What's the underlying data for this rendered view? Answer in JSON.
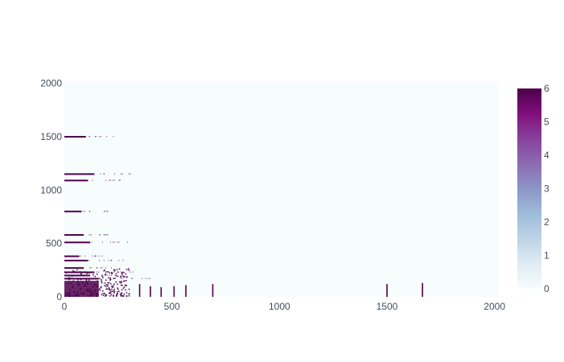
{
  "chart_data": {
    "type": "heatmap",
    "title": "",
    "xlabel": "",
    "ylabel": "",
    "xlim": [
      0,
      2020
    ],
    "ylim": [
      0,
      2020
    ],
    "x_ticks": [
      0,
      500,
      1000,
      1500,
      2000
    ],
    "y_ticks": [
      0,
      500,
      1000,
      1500,
      2000
    ],
    "colorscale": {
      "name": "BuPu",
      "min": 0,
      "max": 6,
      "ticks": [
        0,
        1,
        2,
        3,
        4,
        5,
        6
      ],
      "colors": [
        "#f7fcfd",
        "#e0ecf4",
        "#bfd3e6",
        "#9ebcda",
        "#8c96c6",
        "#8c6bb1",
        "#88419d",
        "#810f7c",
        "#4d004b"
      ]
    },
    "background_value": 0,
    "dense_region": {
      "x_range": [
        0,
        160
      ],
      "y_range": [
        0,
        150
      ],
      "value": 6
    },
    "horizontal_bands": [
      {
        "y": 1500,
        "x_end": 100,
        "value": 6
      },
      {
        "y": 1150,
        "x_end": 140,
        "value": 6
      },
      {
        "y": 1090,
        "x_end": 110,
        "value": 6
      },
      {
        "y": 800,
        "x_end": 80,
        "value": 6
      },
      {
        "y": 580,
        "x_end": 90,
        "value": 6
      },
      {
        "y": 510,
        "x_end": 120,
        "value": 6
      },
      {
        "y": 380,
        "x_end": 70,
        "value": 6
      },
      {
        "y": 340,
        "x_end": 110,
        "value": 6
      },
      {
        "y": 270,
        "x_end": 90,
        "value": 6
      },
      {
        "y": 230,
        "x_end": 140,
        "value": 6
      },
      {
        "y": 200,
        "x_end": 120,
        "value": 6
      },
      {
        "y": 170,
        "x_end": 160,
        "value": 6
      }
    ],
    "vertical_bands": [
      {
        "x": 350,
        "y_end": 120,
        "value": 6
      },
      {
        "x": 400,
        "y_end": 100,
        "value": 6
      },
      {
        "x": 450,
        "y_end": 90,
        "value": 6
      },
      {
        "x": 510,
        "y_end": 100,
        "value": 6
      },
      {
        "x": 565,
        "y_end": 110,
        "value": 6
      },
      {
        "x": 690,
        "y_end": 120,
        "value": 6
      },
      {
        "x": 1500,
        "y_end": 120,
        "value": 6
      },
      {
        "x": 1665,
        "y_end": 130,
        "value": 6
      }
    ]
  }
}
